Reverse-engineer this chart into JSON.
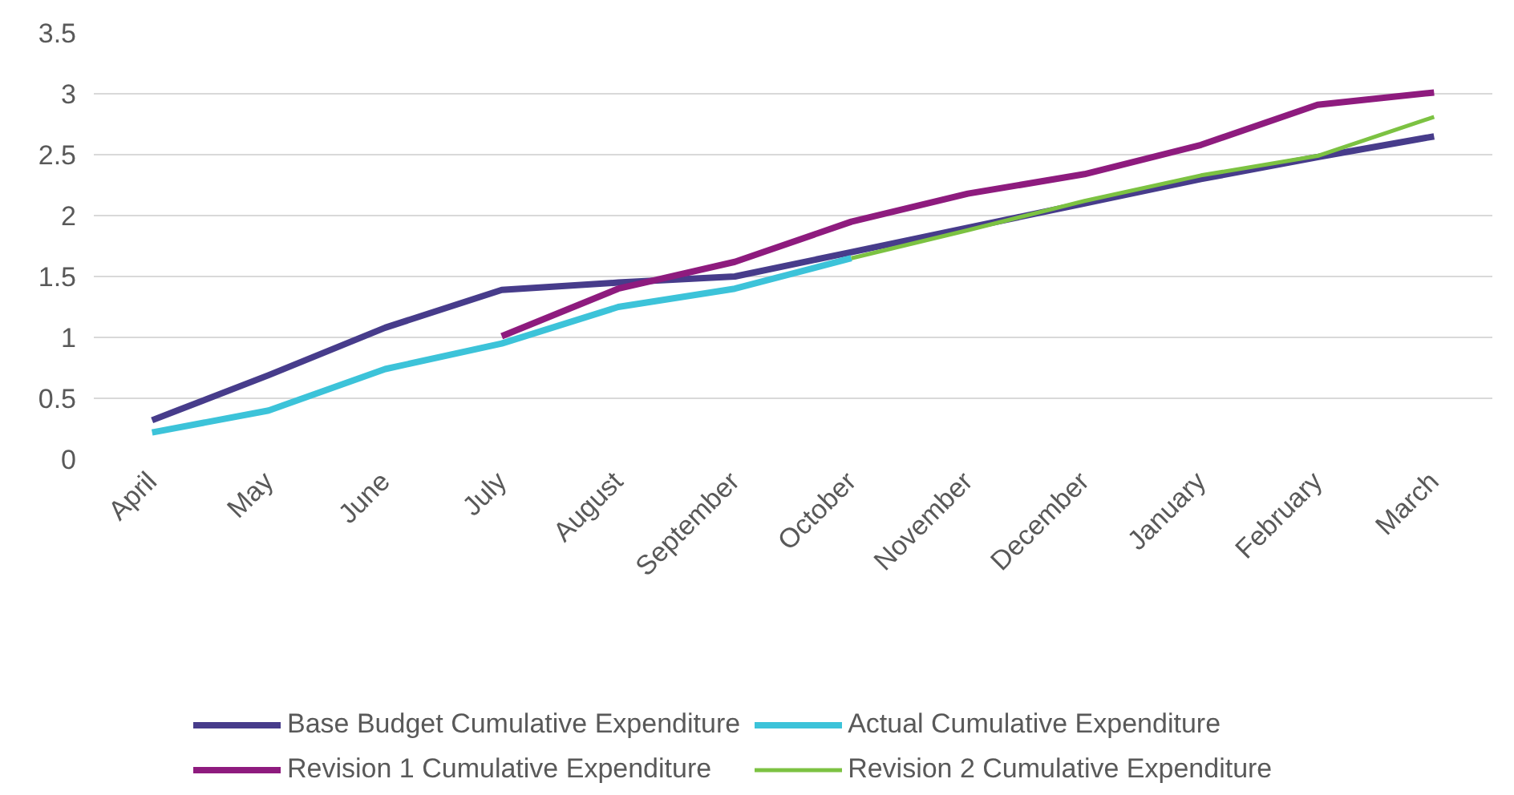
{
  "chart_data": {
    "type": "line",
    "categories": [
      "April",
      "May",
      "June",
      "July",
      "August",
      "September",
      "October",
      "November",
      "December",
      "January",
      "February",
      "March"
    ],
    "ylim": [
      0,
      3.5
    ],
    "yticks": [
      0,
      0.5,
      1,
      1.5,
      2,
      2.5,
      3,
      3.5
    ],
    "grid": "y",
    "legend": "bottom",
    "line_style": "solid",
    "marker": "none",
    "series": [
      {
        "name": "Base Budget Cumulative Expenditure",
        "color": "#473c8b",
        "values": [
          0.32,
          0.69,
          1.08,
          1.39,
          1.45,
          1.5,
          1.7,
          1.9,
          2.1,
          2.3,
          2.48,
          2.65
        ]
      },
      {
        "name": "Actual Cumulative Expenditure",
        "color": "#3cc3d9",
        "values": [
          0.22,
          0.4,
          0.74,
          0.95,
          1.25,
          1.4,
          1.65,
          null,
          null,
          null,
          null,
          null
        ]
      },
      {
        "name": "Revision 1 Cumulative Expenditure",
        "color": "#8e1b7e",
        "values": [
          null,
          null,
          null,
          1.01,
          1.4,
          1.62,
          1.95,
          2.18,
          2.34,
          2.58,
          2.91,
          3.01
        ]
      },
      {
        "name": "Revision 2 Cumulative Expenditure",
        "color": "#7cc242",
        "values": [
          null,
          null,
          null,
          null,
          null,
          null,
          1.65,
          1.88,
          2.12,
          2.33,
          2.49,
          2.81
        ]
      }
    ]
  }
}
